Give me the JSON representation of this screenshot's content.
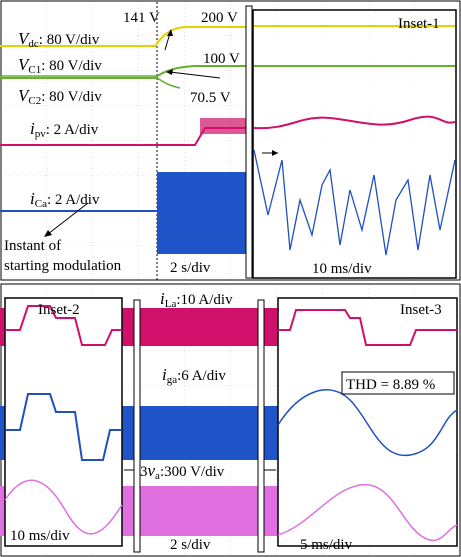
{
  "top_panel": {
    "vdc": {
      "symbol": "V",
      "sub": "dc",
      "scale": ": 80 V/div"
    },
    "vc1": {
      "symbol": "V",
      "sub": "C1",
      "scale": ": 80 V/div"
    },
    "vc2": {
      "symbol": "V",
      "sub": "C2",
      "scale": ": 80 V/div"
    },
    "ipv": {
      "symbol": "i",
      "sub": "pv",
      "scale": ": 2 A/div"
    },
    "ica": {
      "symbol": "i",
      "sub": "Ca",
      "scale": ": 2 A/div"
    },
    "annotations": {
      "v141": "141 V",
      "v200": "200 V",
      "v100": "100 V",
      "v70": "70.5 V",
      "instant_line1": "Instant of",
      "instant_line2": "starting modulation",
      "time_div": "2 s/div"
    },
    "inset": {
      "title": "Inset-1",
      "time_div": "10 ms/div"
    }
  },
  "bottom_panel": {
    "ila": {
      "symbol": "i",
      "sub": "La",
      "scale": ":10 A/div"
    },
    "iga": {
      "symbol": "i",
      "sub": "ga",
      "scale": ":6 A/div"
    },
    "va": {
      "prefix": "3",
      "symbol": "v",
      "sub": "a",
      "scale": ":300 V/div"
    },
    "time_div": "2 s/div",
    "inset2": {
      "title": "Inset-2",
      "time_div": "10 ms/div"
    },
    "inset3": {
      "title": "Inset-3",
      "thd": "THD = 8.89 %",
      "time_div": "5 ms/div"
    }
  }
}
